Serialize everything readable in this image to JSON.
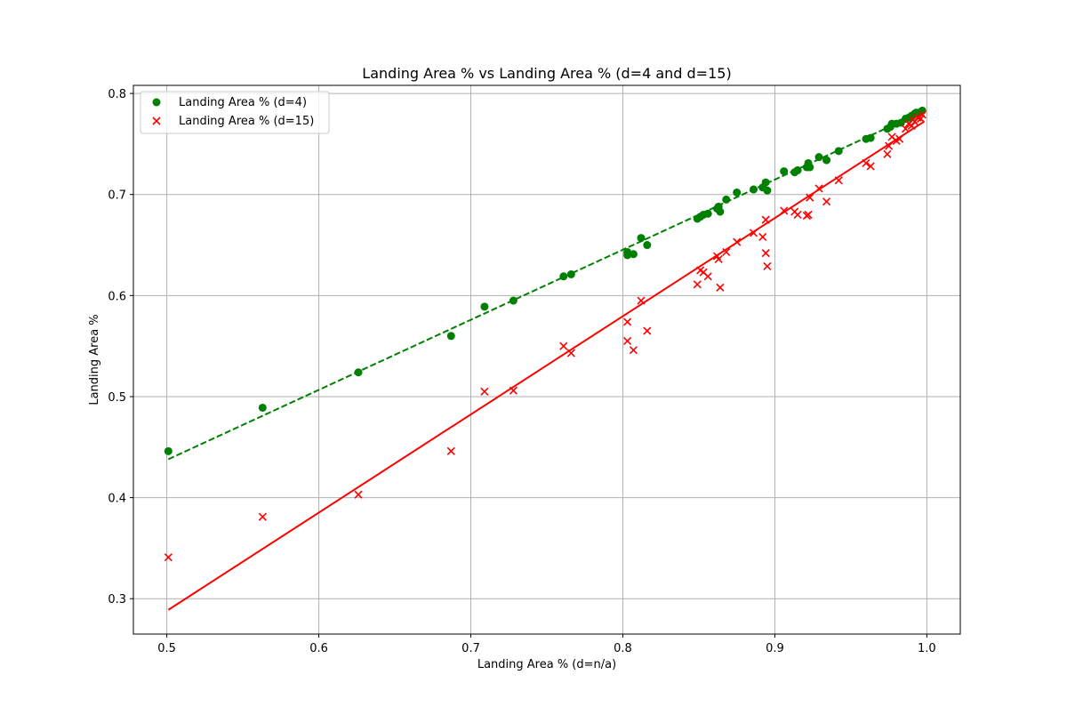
{
  "chart_data": {
    "type": "scatter",
    "title": "Landing Area % vs Landing Area % (d=4 and d=15)",
    "xlabel": "Landing Area % (d=n/a)",
    "ylabel": "Landing Area %",
    "xlim": [
      0.478,
      1.022
    ],
    "ylim": [
      0.265,
      0.808
    ],
    "xticks": [
      0.5,
      0.6,
      0.7,
      0.8,
      0.9,
      1.0
    ],
    "xtick_labels": [
      "0.5",
      "0.6",
      "0.7",
      "0.8",
      "0.9",
      "1.0"
    ],
    "yticks": [
      0.3,
      0.4,
      0.5,
      0.6,
      0.7,
      0.8
    ],
    "ytick_labels": [
      "0.3",
      "0.4",
      "0.5",
      "0.6",
      "0.7",
      "0.8"
    ],
    "grid": true,
    "legend_position": "top-left",
    "series": [
      {
        "name": "Landing Area % (d=4)",
        "marker": "circle",
        "color": "#008000",
        "trend_line": {
          "style": "dashed",
          "x": [
            0.501,
            0.997
          ],
          "y": [
            0.438,
            0.782
          ]
        },
        "points": [
          [
            0.501,
            0.446
          ],
          [
            0.563,
            0.489
          ],
          [
            0.626,
            0.524
          ],
          [
            0.687,
            0.56
          ],
          [
            0.709,
            0.589
          ],
          [
            0.728,
            0.595
          ],
          [
            0.761,
            0.619
          ],
          [
            0.766,
            0.621
          ],
          [
            0.803,
            0.64
          ],
          [
            0.803,
            0.643
          ],
          [
            0.807,
            0.641
          ],
          [
            0.812,
            0.657
          ],
          [
            0.816,
            0.65
          ],
          [
            0.849,
            0.676
          ],
          [
            0.851,
            0.678
          ],
          [
            0.853,
            0.68
          ],
          [
            0.856,
            0.681
          ],
          [
            0.862,
            0.686
          ],
          [
            0.863,
            0.688
          ],
          [
            0.864,
            0.683
          ],
          [
            0.868,
            0.695
          ],
          [
            0.875,
            0.702
          ],
          [
            0.886,
            0.705
          ],
          [
            0.892,
            0.707
          ],
          [
            0.894,
            0.712
          ],
          [
            0.895,
            0.704
          ],
          [
            0.906,
            0.723
          ],
          [
            0.913,
            0.722
          ],
          [
            0.915,
            0.724
          ],
          [
            0.921,
            0.727
          ],
          [
            0.922,
            0.731
          ],
          [
            0.923,
            0.727
          ],
          [
            0.929,
            0.737
          ],
          [
            0.934,
            0.734
          ],
          [
            0.942,
            0.743
          ],
          [
            0.96,
            0.755
          ],
          [
            0.963,
            0.756
          ],
          [
            0.974,
            0.765
          ],
          [
            0.976,
            0.767
          ],
          [
            0.977,
            0.77
          ],
          [
            0.98,
            0.77
          ],
          [
            0.983,
            0.771
          ],
          [
            0.986,
            0.775
          ],
          [
            0.988,
            0.776
          ],
          [
            0.99,
            0.778
          ],
          [
            0.992,
            0.78
          ],
          [
            0.993,
            0.781
          ],
          [
            0.995,
            0.781
          ],
          [
            0.997,
            0.783
          ]
        ]
      },
      {
        "name": "Landing Area % (d=15)",
        "marker": "x",
        "color": "#ff0000",
        "trend_line": {
          "style": "solid",
          "x": [
            0.501,
            0.998
          ],
          "y": [
            0.289,
            0.772
          ]
        },
        "points": [
          [
            0.501,
            0.341
          ],
          [
            0.563,
            0.381
          ],
          [
            0.626,
            0.403
          ],
          [
            0.687,
            0.446
          ],
          [
            0.709,
            0.505
          ],
          [
            0.728,
            0.506
          ],
          [
            0.761,
            0.55
          ],
          [
            0.766,
            0.543
          ],
          [
            0.803,
            0.574
          ],
          [
            0.803,
            0.555
          ],
          [
            0.807,
            0.546
          ],
          [
            0.812,
            0.595
          ],
          [
            0.816,
            0.565
          ],
          [
            0.849,
            0.611
          ],
          [
            0.851,
            0.625
          ],
          [
            0.853,
            0.623
          ],
          [
            0.856,
            0.619
          ],
          [
            0.862,
            0.639
          ],
          [
            0.863,
            0.636
          ],
          [
            0.864,
            0.608
          ],
          [
            0.868,
            0.643
          ],
          [
            0.875,
            0.653
          ],
          [
            0.886,
            0.662
          ],
          [
            0.892,
            0.658
          ],
          [
            0.894,
            0.675
          ],
          [
            0.894,
            0.642
          ],
          [
            0.895,
            0.629
          ],
          [
            0.906,
            0.684
          ],
          [
            0.913,
            0.683
          ],
          [
            0.915,
            0.68
          ],
          [
            0.921,
            0.679
          ],
          [
            0.922,
            0.68
          ],
          [
            0.923,
            0.697
          ],
          [
            0.929,
            0.706
          ],
          [
            0.934,
            0.693
          ],
          [
            0.942,
            0.714
          ],
          [
            0.96,
            0.731
          ],
          [
            0.963,
            0.728
          ],
          [
            0.974,
            0.74
          ],
          [
            0.975,
            0.748
          ],
          [
            0.977,
            0.757
          ],
          [
            0.98,
            0.753
          ],
          [
            0.982,
            0.755
          ],
          [
            0.986,
            0.765
          ],
          [
            0.988,
            0.77
          ],
          [
            0.99,
            0.768
          ],
          [
            0.991,
            0.774
          ],
          [
            0.992,
            0.772
          ],
          [
            0.994,
            0.776
          ],
          [
            0.996,
            0.775
          ],
          [
            0.997,
            0.779
          ]
        ]
      }
    ]
  }
}
